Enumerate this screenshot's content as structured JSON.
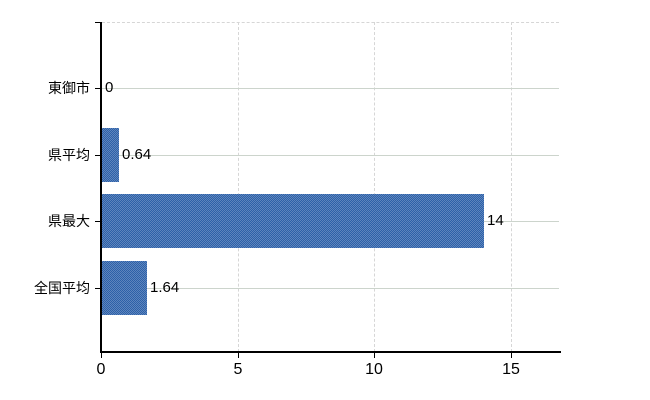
{
  "chart_data": {
    "type": "bar",
    "orientation": "horizontal",
    "title": "",
    "xlabel": "",
    "ylabel": "",
    "categories": [
      "東御市",
      "県平均",
      "県最大",
      "全国平均"
    ],
    "values": [
      0,
      0.64,
      14,
      1.64
    ],
    "value_labels": [
      "0",
      "0.64",
      "14",
      "1.64"
    ],
    "x_ticks": [
      0,
      5,
      10,
      15
    ],
    "x_tick_labels": [
      "0",
      "5",
      "10",
      "15"
    ],
    "xlim": [
      0,
      16.8
    ],
    "grid": {
      "horizontal_gridlines": "solid, one per category",
      "vertical_gridlines": "dashed at 5, 10, 15",
      "plot_top_border": "dashed"
    },
    "legend_position": "none"
  },
  "colors": {
    "bar_fill_average": "#4372b1",
    "bar_dither_dark": "#2d61a8",
    "bar_dither_light": "#5e85bd",
    "axis": "#000000",
    "horizontal_gridline": "#ccd4cc",
    "vertical_gridline": "#d6d6d6",
    "background": "#ffffff",
    "text": "#000000"
  }
}
